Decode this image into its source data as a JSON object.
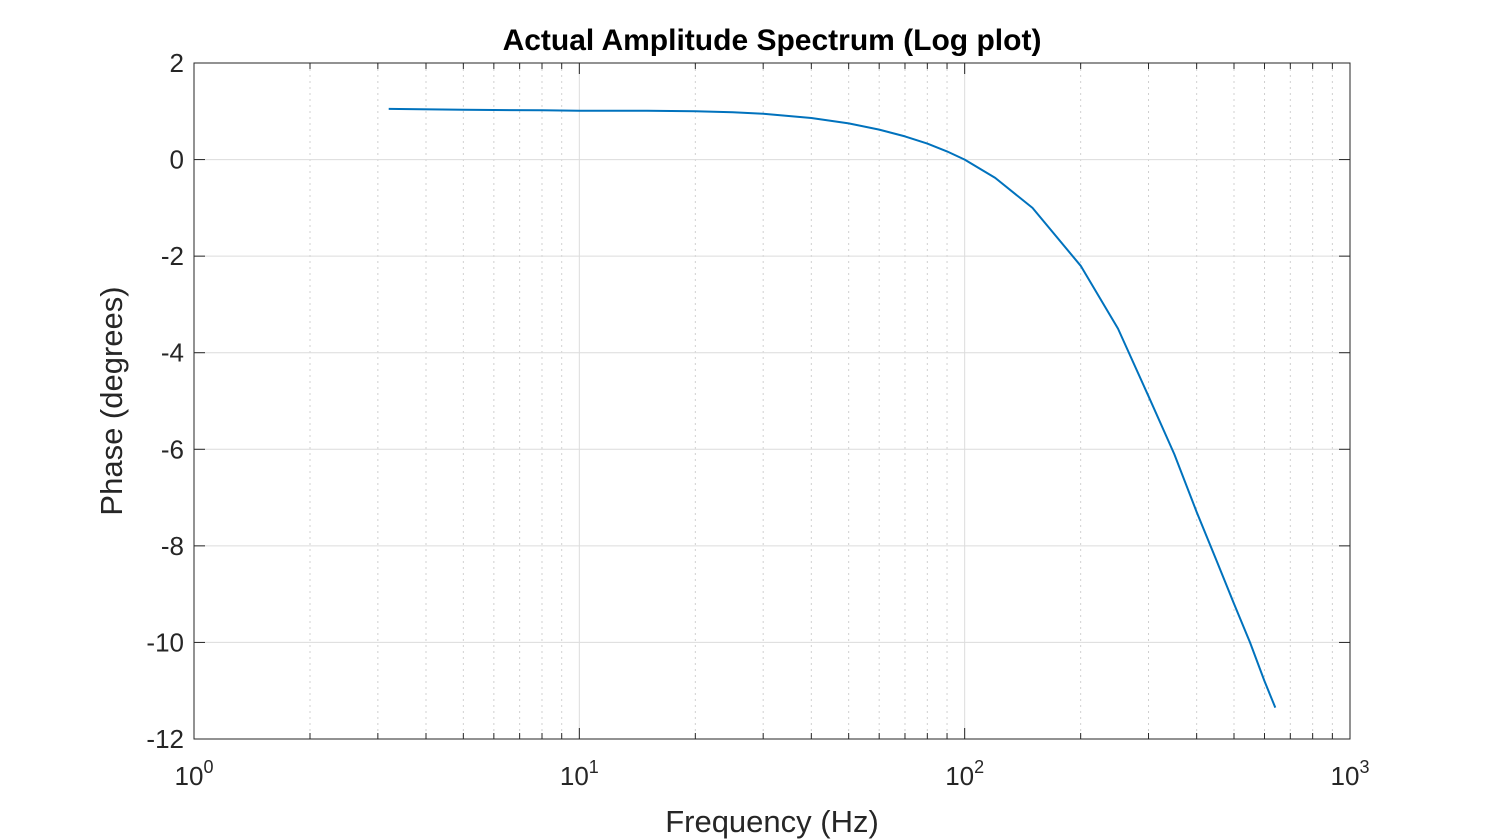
{
  "chart_data": {
    "type": "line",
    "title": "Actual Amplitude Spectrum (Log plot)",
    "xlabel": "Frequency (Hz)",
    "ylabel": "Phase (degrees)",
    "xscale": "log",
    "xlim": [
      1,
      1000
    ],
    "ylim": [
      -12,
      2
    ],
    "grid": true,
    "x_ticks": [
      {
        "base": "10",
        "exp": "0",
        "value": 1
      },
      {
        "base": "10",
        "exp": "1",
        "value": 10
      },
      {
        "base": "10",
        "exp": "2",
        "value": 100
      },
      {
        "base": "10",
        "exp": "3",
        "value": 1000
      }
    ],
    "y_ticks": [
      "2",
      "0",
      "-2",
      "-4",
      "-6",
      "-8",
      "-10",
      "-12"
    ],
    "line_color": "#0072bd",
    "series": [
      {
        "x": [
          3.2,
          5,
          8,
          10,
          15,
          20,
          25,
          30,
          40,
          50,
          60,
          70,
          80,
          90,
          100,
          120,
          150,
          200,
          250,
          300,
          350,
          400,
          450,
          500,
          550,
          600,
          640
        ],
        "y": [
          1.05,
          1.03,
          1.02,
          1.01,
          1.01,
          1.0,
          0.98,
          0.95,
          0.86,
          0.75,
          0.62,
          0.48,
          0.33,
          0.17,
          0.0,
          -0.38,
          -1.0,
          -2.2,
          -3.5,
          -4.9,
          -6.1,
          -7.3,
          -8.3,
          -9.2,
          -10.0,
          -10.8,
          -11.35
        ]
      }
    ]
  }
}
